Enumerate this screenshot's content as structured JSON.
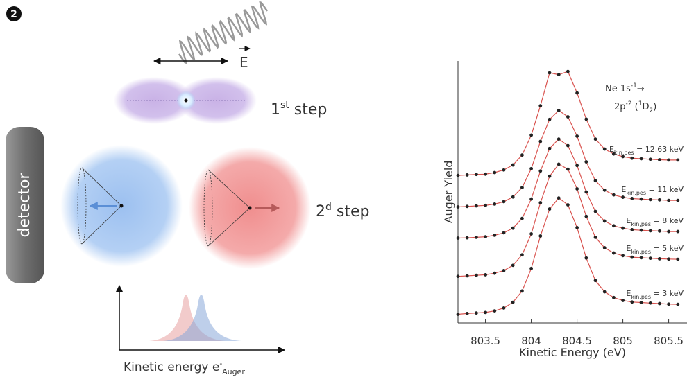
{
  "diagram": {
    "badge": "2",
    "field_label": "E",
    "step1": {
      "base": "1",
      "sup": "st",
      "rest": " step"
    },
    "step2": {
      "base": "2",
      "sup": "d",
      "rest": " step"
    },
    "detector": "detector",
    "axis_label": {
      "base": "Kinetic energy e",
      "sup": "-",
      "sub": "Auger"
    }
  },
  "chart_data": {
    "type": "line",
    "x_label": "Kinetic Energy (eV)",
    "y_label": "Auger Yield",
    "annotation": {
      "line1": {
        "base": "Ne 1s",
        "sup": "-1",
        "arrow": "→"
      },
      "line2": {
        "base": "2p",
        "sup": "-2",
        "open": " (",
        "pre_sup": "1",
        "term": "D",
        "sub": "2",
        "close": ")"
      }
    },
    "xlim": [
      803.2,
      805.7
    ],
    "ylim": [
      0,
      10
    ],
    "xticks": [
      803.5,
      804,
      804.5,
      805,
      805.5
    ],
    "x": [
      803.2,
      803.3,
      803.4,
      803.5,
      803.6,
      803.7,
      803.8,
      803.9,
      804.0,
      804.1,
      804.2,
      804.3,
      804.4,
      804.5,
      804.6,
      804.7,
      804.8,
      804.9,
      805.0,
      805.1,
      805.2,
      805.3,
      805.4,
      805.5,
      805.6
    ],
    "line_color": "#d9534f",
    "marker_color": "#222222",
    "series": [
      {
        "name": {
          "main": "E",
          "sub": "kin,pes",
          "rest": " = 12.63 keV"
        },
        "values": [
          5.63,
          5.65,
          5.67,
          5.68,
          5.74,
          5.84,
          6.03,
          6.41,
          7.17,
          8.29,
          9.55,
          9.48,
          9.6,
          8.78,
          7.78,
          7.02,
          6.64,
          6.45,
          6.35,
          6.29,
          6.27,
          6.25,
          6.23,
          6.22,
          6.22
        ]
      },
      {
        "name": {
          "main": "E",
          "sub": "kin,pes",
          "rest": " = 11 keV"
        },
        "values": [
          4.43,
          4.45,
          4.47,
          4.49,
          4.54,
          4.63,
          4.81,
          5.17,
          5.89,
          6.93,
          7.77,
          8.11,
          7.87,
          7.13,
          6.15,
          5.43,
          5.07,
          4.89,
          4.8,
          4.75,
          4.73,
          4.71,
          4.7,
          4.68,
          4.68
        ]
      },
      {
        "name": {
          "main": "E",
          "sub": "kin,pes",
          "rest": " = 8 keV"
        },
        "values": [
          3.24,
          3.25,
          3.27,
          3.29,
          3.35,
          3.44,
          3.62,
          3.99,
          4.73,
          5.8,
          6.66,
          7.02,
          6.77,
          6.01,
          5.0,
          4.26,
          3.89,
          3.71,
          3.62,
          3.56,
          3.54,
          3.52,
          3.51,
          3.49,
          3.49
        ]
      },
      {
        "name": {
          "main": "E",
          "sub": "kin,pes",
          "rest": " = 5 keV"
        },
        "values": [
          1.78,
          1.8,
          1.82,
          1.84,
          1.9,
          2.0,
          2.2,
          2.6,
          3.4,
          4.59,
          5.6,
          6.06,
          5.87,
          5.12,
          4.07,
          3.27,
          2.87,
          2.67,
          2.57,
          2.51,
          2.49,
          2.47,
          2.45,
          2.44,
          2.43
        ]
      },
      {
        "name": {
          "main": "E",
          "sub": "kin,pes",
          "rest": " = 3 keV"
        },
        "values": [
          0.33,
          0.36,
          0.38,
          0.4,
          0.46,
          0.57,
          0.79,
          1.22,
          2.08,
          3.32,
          4.35,
          4.77,
          4.51,
          3.64,
          2.48,
          1.62,
          1.19,
          0.97,
          0.86,
          0.8,
          0.78,
          0.76,
          0.74,
          0.72,
          0.71
        ]
      }
    ]
  }
}
